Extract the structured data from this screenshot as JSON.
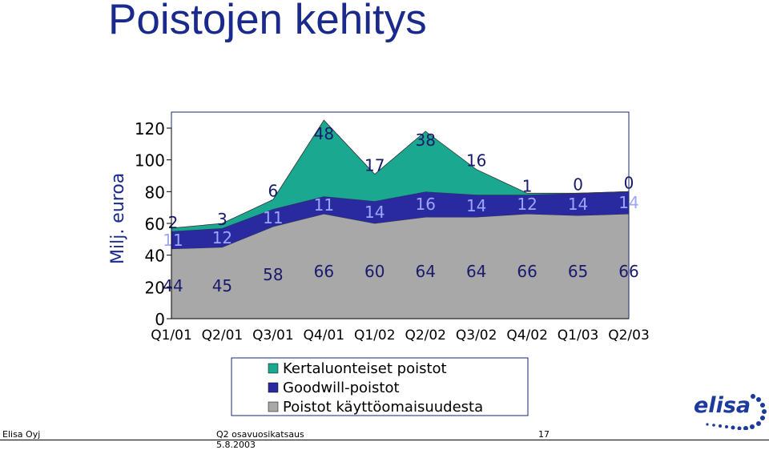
{
  "title": "Poistojen kehitys",
  "footer": {
    "company": "Elisa Oyj",
    "doc": "Q2 osavuosikatsaus",
    "date": "5.8.2003",
    "page": "17"
  },
  "logo_text": "elisa",
  "colors": {
    "title": "#1a2a8c",
    "kertaluonteiset": "#1aa890",
    "goodwill": "#2a2aa0",
    "kayttoomaisuus": "#a8a8a8"
  },
  "chart_data": {
    "type": "area",
    "stacked": true,
    "ylabel": "Milj. euroa",
    "ylim": [
      0,
      120
    ],
    "yticks": [
      0,
      20,
      40,
      60,
      80,
      100,
      120
    ],
    "categories": [
      "Q1/01",
      "Q2/01",
      "Q3/01",
      "Q4/01",
      "Q1/02",
      "Q2/02",
      "Q3/02",
      "Q4/02",
      "Q1/03",
      "Q2/03"
    ],
    "series": [
      {
        "name": "Poistot käyttöomaisuudesta",
        "values": [
          44,
          45,
          58,
          66,
          60,
          64,
          64,
          66,
          65,
          66
        ],
        "color": "#a8a8a8"
      },
      {
        "name": "Goodwill-poistot",
        "values": [
          11,
          12,
          11,
          11,
          14,
          16,
          14,
          12,
          14,
          14
        ],
        "color": "#2a2aa0"
      },
      {
        "name": "Kertaluonteiset poistot",
        "values": [
          2,
          3,
          6,
          48,
          17,
          38,
          16,
          1,
          0,
          0
        ],
        "color": "#1aa890"
      }
    ],
    "legend_order": [
      "Kertaluonteiset poistot",
      "Goodwill-poistot",
      "Poistot käyttöomaisuudesta"
    ],
    "legend_position": "bottom"
  }
}
